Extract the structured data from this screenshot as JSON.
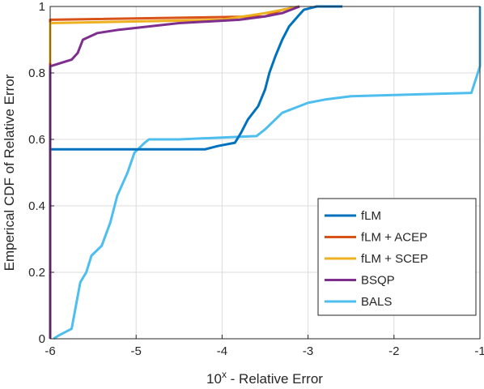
{
  "chart_data": {
    "type": "line",
    "title": "",
    "xlabel": "10^x - Relative Error",
    "xlabel_base": "10",
    "xlabel_sup": "x",
    "xlabel_rest": " - Relative Error",
    "ylabel": "Emperical CDF of Relative Error",
    "xlim": [
      -6,
      -1
    ],
    "ylim": [
      0,
      1
    ],
    "xticks": [
      -6,
      -5,
      -4,
      -3,
      -2,
      -1
    ],
    "xtick_labels": [
      "-6",
      "-5",
      "-4",
      "-3",
      "-2",
      "-1"
    ],
    "yticks": [
      0,
      0.2,
      0.4,
      0.6,
      0.8,
      1
    ],
    "ytick_labels": [
      "0",
      "0.2",
      "0.4",
      "0.6",
      "0.8",
      "1"
    ],
    "grid": true,
    "legend_position": "bottom-right",
    "series": [
      {
        "name": "fLM",
        "color": "#0072BD",
        "points": [
          [
            -6,
            0
          ],
          [
            -6,
            0.57
          ],
          [
            -4.2,
            0.57
          ],
          [
            -4.05,
            0.58
          ],
          [
            -3.85,
            0.59
          ],
          [
            -3.78,
            0.62
          ],
          [
            -3.7,
            0.66
          ],
          [
            -3.58,
            0.7
          ],
          [
            -3.5,
            0.75
          ],
          [
            -3.45,
            0.8
          ],
          [
            -3.38,
            0.85
          ],
          [
            -3.3,
            0.9
          ],
          [
            -3.22,
            0.94
          ],
          [
            -3.12,
            0.97
          ],
          [
            -3.05,
            0.99
          ],
          [
            -2.9,
            1
          ],
          [
            -2.6,
            1
          ]
        ]
      },
      {
        "name": "fLM + ACEP",
        "color": "#D95319",
        "points": [
          [
            -6,
            0
          ],
          [
            -6,
            0.96
          ],
          [
            -3.5,
            0.97
          ],
          [
            -3.3,
            0.99
          ],
          [
            -3.1,
            1
          ]
        ]
      },
      {
        "name": "fLM + SCEP",
        "color": "#EDB120",
        "points": [
          [
            -6,
            0.83
          ],
          [
            -6,
            0.95
          ],
          [
            -4.0,
            0.96
          ],
          [
            -3.5,
            0.98
          ],
          [
            -3.2,
            0.995
          ],
          [
            -3.1,
            1
          ]
        ]
      },
      {
        "name": "BSQP",
        "color": "#7E2F8E",
        "points": [
          [
            -6,
            0
          ],
          [
            -6,
            0.82
          ],
          [
            -5.75,
            0.84
          ],
          [
            -5.68,
            0.86
          ],
          [
            -5.62,
            0.9
          ],
          [
            -5.45,
            0.92
          ],
          [
            -5.2,
            0.93
          ],
          [
            -4.5,
            0.95
          ],
          [
            -3.8,
            0.96
          ],
          [
            -3.5,
            0.97
          ],
          [
            -3.3,
            0.98
          ],
          [
            -3.1,
            1
          ]
        ]
      },
      {
        "name": "BALS",
        "color": "#4DBEEE",
        "points": [
          [
            -5.96,
            0
          ],
          [
            -5.9,
            0.01
          ],
          [
            -5.75,
            0.03
          ],
          [
            -5.65,
            0.17
          ],
          [
            -5.58,
            0.2
          ],
          [
            -5.52,
            0.25
          ],
          [
            -5.4,
            0.28
          ],
          [
            -5.3,
            0.35
          ],
          [
            -5.22,
            0.43
          ],
          [
            -5.1,
            0.5
          ],
          [
            -5.02,
            0.56
          ],
          [
            -4.9,
            0.59
          ],
          [
            -4.85,
            0.6
          ],
          [
            -4.5,
            0.6
          ],
          [
            -3.6,
            0.61
          ],
          [
            -3.5,
            0.63
          ],
          [
            -3.3,
            0.68
          ],
          [
            -3.0,
            0.71
          ],
          [
            -2.8,
            0.72
          ],
          [
            -2.5,
            0.73
          ],
          [
            -1.1,
            0.74
          ],
          [
            -1.0,
            0.82
          ],
          [
            -1.0,
            1.0
          ]
        ]
      }
    ]
  }
}
